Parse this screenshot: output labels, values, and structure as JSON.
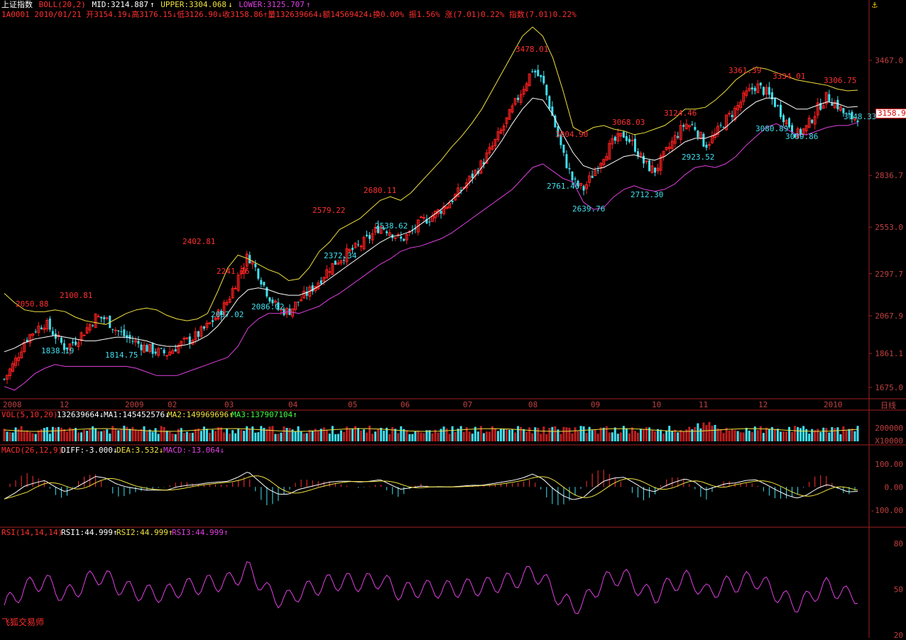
{
  "header": {
    "name": "上证指数",
    "boll_label": "BOLL(20,2)",
    "mid": "MID:3214.887",
    "upper": "UPPER:3304.068",
    "lower": "LOWER:3125.707",
    "line2": "1A0001 2010/01/21 开3154.19↓高3176.15↓低3126.90↓收3158.86↑量132639664↓额14569424↓换0.00% 振1.56% 涨(7.01)0.22% 指数(7.01)0.22%"
  },
  "watermark": "飞狐交易师",
  "colors": {
    "up": "#ff2020",
    "down": "#40e0f0",
    "upper": "#f0e040",
    "mid": "#ffffff",
    "lower": "#e040e0",
    "axis": "#a02020"
  },
  "chart_data": [
    {
      "type": "candlestick",
      "title": "上证指数",
      "price_axis_ticks": [
        3467.0,
        3158.9,
        2836.7,
        2553.0,
        2297.7,
        2067.9,
        1861.1,
        1675.0
      ],
      "ylim": [
        1640,
        3720
      ],
      "current_price": "3158.9",
      "x_ticks": [
        "2008",
        "12",
        "2009",
        "02",
        "03",
        "04",
        "05",
        "06",
        "07",
        "08",
        "09",
        "10",
        "11",
        "12",
        "2010"
      ],
      "period_label": "日线",
      "high_labels": [
        "2050.88",
        "2100.81",
        "2402.81",
        "2241.76",
        "2579.22",
        "2680.11",
        "3478.01",
        "3004.90",
        "3068.03",
        "3124.46",
        "3361.39",
        "3334.01",
        "3306.75"
      ],
      "low_labels": [
        "1838.19",
        "1814.75",
        "2037.02",
        "2086.02",
        "2372.34",
        "2538.62",
        "2761.40",
        "2639.76",
        "2712.30",
        "2923.52",
        "3080.89",
        "3039.86",
        "3148.33"
      ],
      "close_series": [
        1720,
        1810,
        1930,
        1990,
        2030,
        1960,
        1890,
        1930,
        1990,
        2060,
        2050,
        1990,
        1950,
        1920,
        1890,
        1870,
        1860,
        1900,
        1930,
        1960,
        2010,
        2070,
        2150,
        2280,
        2400,
        2300,
        2180,
        2100,
        2090,
        2150,
        2200,
        2260,
        2330,
        2380,
        2420,
        2450,
        2500,
        2560,
        2530,
        2480,
        2520,
        2580,
        2610,
        2650,
        2700,
        2760,
        2830,
        2900,
        2990,
        3090,
        3200,
        3310,
        3420,
        3350,
        3150,
        2950,
        2800,
        2760,
        2850,
        2950,
        3020,
        3060,
        3000,
        2900,
        2860,
        2950,
        3040,
        3120,
        3100,
        3000,
        3060,
        3140,
        3200,
        3280,
        3330,
        3290,
        3220,
        3130,
        3060,
        3100,
        3200,
        3270,
        3220,
        3150,
        3158
      ],
      "upper_series": [
        2190,
        2140,
        2100,
        2090,
        2090,
        2100,
        2090,
        2060,
        2040,
        2030,
        2020,
        2050,
        2080,
        2100,
        2110,
        2100,
        2070,
        2050,
        2040,
        2050,
        2080,
        2200,
        2330,
        2400,
        2380,
        2350,
        2320,
        2300,
        2260,
        2270,
        2330,
        2420,
        2470,
        2540,
        2570,
        2600,
        2650,
        2700,
        2720,
        2700,
        2740,
        2800,
        2860,
        2920,
        2990,
        3050,
        3120,
        3200,
        3300,
        3400,
        3500,
        3600,
        3650,
        3600,
        3480,
        3300,
        3100,
        3070,
        3100,
        3110,
        3090,
        3080,
        3060,
        3070,
        3090,
        3110,
        3150,
        3200,
        3200,
        3210,
        3250,
        3300,
        3360,
        3400,
        3430,
        3420,
        3400,
        3380,
        3360,
        3350,
        3340,
        3330,
        3310,
        3300,
        3304
      ],
      "mid_series": [
        1870,
        1890,
        1920,
        1940,
        1950,
        1960,
        1950,
        1940,
        1930,
        1930,
        1940,
        1950,
        1950,
        1940,
        1930,
        1910,
        1900,
        1900,
        1910,
        1930,
        1960,
        2010,
        2080,
        2160,
        2210,
        2220,
        2210,
        2190,
        2180,
        2180,
        2200,
        2230,
        2270,
        2310,
        2350,
        2390,
        2430,
        2470,
        2500,
        2510,
        2530,
        2570,
        2610,
        2650,
        2700,
        2750,
        2810,
        2880,
        2950,
        3030,
        3120,
        3200,
        3260,
        3250,
        3170,
        3060,
        2960,
        2890,
        2870,
        2880,
        2910,
        2940,
        2950,
        2930,
        2920,
        2940,
        2980,
        3020,
        3040,
        3040,
        3060,
        3100,
        3150,
        3200,
        3240,
        3260,
        3260,
        3230,
        3200,
        3200,
        3220,
        3240,
        3230,
        3210,
        3214
      ],
      "lower_series": [
        1680,
        1660,
        1700,
        1750,
        1780,
        1800,
        1790,
        1790,
        1790,
        1790,
        1790,
        1790,
        1790,
        1780,
        1760,
        1740,
        1740,
        1740,
        1760,
        1780,
        1800,
        1820,
        1840,
        1900,
        2000,
        2050,
        2080,
        2080,
        2090,
        2080,
        2100,
        2120,
        2160,
        2190,
        2230,
        2270,
        2310,
        2350,
        2380,
        2420,
        2440,
        2450,
        2470,
        2490,
        2520,
        2560,
        2600,
        2640,
        2680,
        2720,
        2760,
        2820,
        2880,
        2900,
        2860,
        2820,
        2800,
        2690,
        2650,
        2660,
        2720,
        2760,
        2780,
        2760,
        2750,
        2760,
        2790,
        2840,
        2880,
        2890,
        2880,
        2900,
        2940,
        3000,
        3050,
        3100,
        3120,
        3090,
        3060,
        3060,
        3080,
        3100,
        3110,
        3110,
        3126
      ]
    },
    {
      "type": "bar",
      "title": "VOL(5,10,20)",
      "labels": [
        "132639664↓",
        "MA1:145452576↓",
        "MA2:149969696↑",
        "MA3:137907104↑"
      ],
      "axis_ticks": [
        "200000",
        "X10000"
      ]
    },
    {
      "type": "bar",
      "title": "MACD(26,12,9)",
      "labels": [
        "DIFF:-3.000↓",
        "DEA:3.532↓",
        "MACD:-13.064↓"
      ],
      "axis_ticks": [
        "100.00",
        "0.00",
        "-100.00"
      ],
      "ylim": [
        -150,
        130
      ]
    },
    {
      "type": "line",
      "title": "RSI(14,14,14)",
      "labels": [
        "RSI1:44.999↑",
        "RSI2:44.999↑",
        "RSI3:44.999↑"
      ],
      "axis_ticks": [
        "80",
        "50",
        "20"
      ],
      "ylim": [
        20,
        80
      ]
    }
  ]
}
